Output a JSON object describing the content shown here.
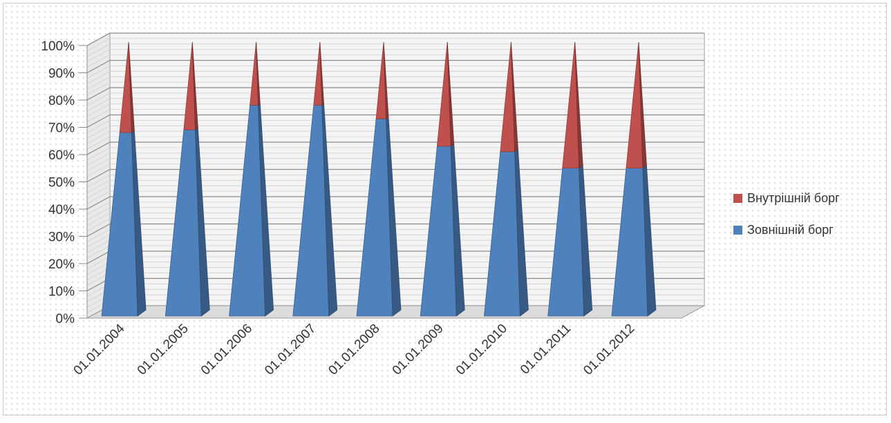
{
  "chart_data": {
    "type": "bar",
    "stacked": "percent",
    "shape": "3d-pyramid",
    "categories": [
      "01.01.2004",
      "01.01.2005",
      "01.01.2006",
      "01.01.2007",
      "01.01.2008",
      "01.01.2009",
      "01.01.2010",
      "01.01.2011",
      "01.01.2012"
    ],
    "series": [
      {
        "name": "Зовнішній борг",
        "values": [
          67,
          68,
          77,
          77,
          72,
          62,
          60,
          54,
          54
        ],
        "color": "#4f81bd"
      },
      {
        "name": "Внутрішній борг",
        "values": [
          33,
          32,
          23,
          23,
          28,
          38,
          40,
          46,
          46
        ],
        "color": "#c0504d"
      }
    ],
    "y_ticks": [
      "0%",
      "10%",
      "20%",
      "30%",
      "40%",
      "50%",
      "60%",
      "70%",
      "80%",
      "90%",
      "100%"
    ],
    "ylim": [
      0,
      100
    ],
    "grid": true,
    "legend_position": "right"
  }
}
